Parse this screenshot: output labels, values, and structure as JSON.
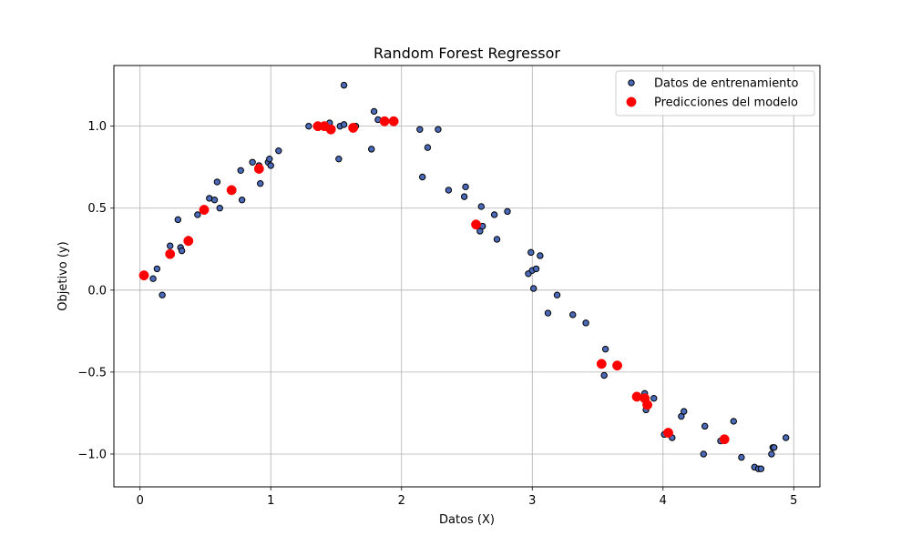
{
  "chart_data": {
    "type": "scatter",
    "title": "Random Forest Regressor",
    "xlabel": "Datos (X)",
    "ylabel": "Objetivo (y)",
    "xlim": [
      -0.2,
      5.2
    ],
    "ylim": [
      -1.2,
      1.37
    ],
    "xticks": [
      0,
      1,
      2,
      3,
      4,
      5
    ],
    "xtick_labels": [
      "0",
      "1",
      "2",
      "3",
      "4",
      "5"
    ],
    "yticks": [
      -1.0,
      -0.5,
      0.0,
      0.5,
      1.0
    ],
    "ytick_labels": [
      "−1.0",
      "−0.5",
      "0.0",
      "0.5",
      "1.0"
    ],
    "grid": true,
    "legend_position": "top-right",
    "series": [
      {
        "name": "Datos de entrenamiento",
        "face_color": "#4a6ab8",
        "edge_color": "#000000",
        "marker_size": "small",
        "points": [
          [
            0.1,
            0.07
          ],
          [
            0.13,
            0.13
          ],
          [
            0.17,
            -0.03
          ],
          [
            0.23,
            0.27
          ],
          [
            0.29,
            0.43
          ],
          [
            0.31,
            0.26
          ],
          [
            0.32,
            0.24
          ],
          [
            0.37,
            0.31
          ],
          [
            0.44,
            0.46
          ],
          [
            0.53,
            0.56
          ],
          [
            0.57,
            0.55
          ],
          [
            0.59,
            0.66
          ],
          [
            0.61,
            0.5
          ],
          [
            0.77,
            0.73
          ],
          [
            0.78,
            0.55
          ],
          [
            0.86,
            0.78
          ],
          [
            0.91,
            0.76
          ],
          [
            0.92,
            0.65
          ],
          [
            0.98,
            0.78
          ],
          [
            0.99,
            0.8
          ],
          [
            1.0,
            0.76
          ],
          [
            1.06,
            0.85
          ],
          [
            1.29,
            1.0
          ],
          [
            1.45,
            1.02
          ],
          [
            1.52,
            0.8
          ],
          [
            1.53,
            1.0
          ],
          [
            1.56,
            1.01
          ],
          [
            1.56,
            1.25
          ],
          [
            1.65,
            1.0
          ],
          [
            1.77,
            0.86
          ],
          [
            1.79,
            1.09
          ],
          [
            1.82,
            1.04
          ],
          [
            2.14,
            0.98
          ],
          [
            2.16,
            0.69
          ],
          [
            2.2,
            0.87
          ],
          [
            2.28,
            0.98
          ],
          [
            2.36,
            0.61
          ],
          [
            2.48,
            0.57
          ],
          [
            2.49,
            0.63
          ],
          [
            2.6,
            0.36
          ],
          [
            2.61,
            0.51
          ],
          [
            2.62,
            0.39
          ],
          [
            2.71,
            0.46
          ],
          [
            2.73,
            0.31
          ],
          [
            2.81,
            0.48
          ],
          [
            2.97,
            0.1
          ],
          [
            2.99,
            0.23
          ],
          [
            3.0,
            0.12
          ],
          [
            3.01,
            0.01
          ],
          [
            3.03,
            0.13
          ],
          [
            3.06,
            0.21
          ],
          [
            3.12,
            -0.14
          ],
          [
            3.19,
            -0.03
          ],
          [
            3.31,
            -0.15
          ],
          [
            3.41,
            -0.2
          ],
          [
            3.55,
            -0.52
          ],
          [
            3.56,
            -0.36
          ],
          [
            3.86,
            -0.63
          ],
          [
            3.87,
            -0.73
          ],
          [
            3.93,
            -0.66
          ],
          [
            4.01,
            -0.88
          ],
          [
            4.07,
            -0.9
          ],
          [
            4.14,
            -0.77
          ],
          [
            4.16,
            -0.74
          ],
          [
            4.31,
            -1.0
          ],
          [
            4.32,
            -0.83
          ],
          [
            4.44,
            -0.92
          ],
          [
            4.54,
            -0.8
          ],
          [
            4.6,
            -1.02
          ],
          [
            4.7,
            -1.08
          ],
          [
            4.73,
            -1.09
          ],
          [
            4.75,
            -1.09
          ],
          [
            4.83,
            -1.0
          ],
          [
            4.84,
            -0.96
          ],
          [
            4.85,
            -0.96
          ],
          [
            4.94,
            -0.9
          ]
        ]
      },
      {
        "name": "Predicciones del modelo",
        "face_color": "#ff0000",
        "edge_color": "#ff0000",
        "marker_size": "large",
        "points": [
          [
            0.03,
            0.09
          ],
          [
            0.23,
            0.22
          ],
          [
            0.37,
            0.3
          ],
          [
            0.49,
            0.49
          ],
          [
            0.7,
            0.61
          ],
          [
            0.91,
            0.74
          ],
          [
            1.36,
            1.0
          ],
          [
            1.41,
            1.0
          ],
          [
            1.46,
            0.98
          ],
          [
            1.63,
            0.99
          ],
          [
            1.87,
            1.03
          ],
          [
            1.94,
            1.03
          ],
          [
            2.57,
            0.4
          ],
          [
            3.53,
            -0.45
          ],
          [
            3.65,
            -0.46
          ],
          [
            3.8,
            -0.65
          ],
          [
            3.86,
            -0.66
          ],
          [
            3.88,
            -0.7
          ],
          [
            4.04,
            -0.87
          ],
          [
            4.47,
            -0.91
          ]
        ]
      }
    ]
  }
}
